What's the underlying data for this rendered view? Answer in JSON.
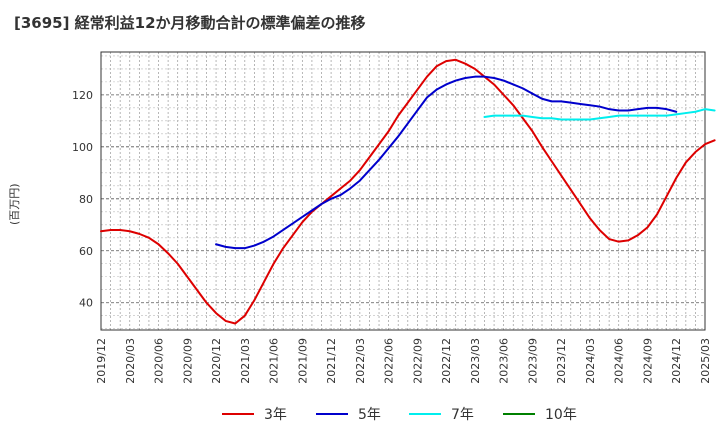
{
  "title": "[3695]  経常利益12か月移動合計の標準偏差の推移",
  "chart_data": {
    "type": "line",
    "title": "[3695]  経常利益12か月移動合計の標準偏差の推移",
    "ylabel": "(百万円)",
    "xlabel": "",
    "x_ticks": [
      "2019/12",
      "2020/03",
      "2020/06",
      "2020/09",
      "2020/12",
      "2021/03",
      "2021/06",
      "2021/09",
      "2021/12",
      "2022/03",
      "2022/06",
      "2022/09",
      "2022/12",
      "2023/03",
      "2023/06",
      "2023/09",
      "2023/12",
      "2024/03",
      "2024/06",
      "2024/09",
      "2024/12",
      "2025/03"
    ],
    "y_ticks": [
      40,
      60,
      80,
      100,
      120
    ],
    "ylim": [
      29.5,
      136.5
    ],
    "grid": true,
    "legend_position": "bottom",
    "series": [
      {
        "name": "3年",
        "color": "#dd0000",
        "start_index": 0,
        "values": [
          67.5,
          68,
          68,
          67.5,
          66.5,
          65,
          62.5,
          59,
          55,
          50,
          45,
          40,
          36,
          33,
          32,
          35,
          41,
          48,
          55,
          61,
          66,
          71,
          75,
          78,
          81,
          84,
          87,
          91,
          96,
          101,
          106,
          112,
          117,
          122,
          127,
          131,
          133,
          133.5,
          132,
          130,
          127,
          124,
          120,
          116,
          111,
          106,
          100,
          94.5,
          89,
          83.5,
          78,
          72.5,
          68,
          64.5,
          63.5,
          64,
          66,
          69,
          74,
          81,
          88,
          94,
          98,
          101,
          102.5
        ]
      },
      {
        "name": "5年",
        "color": "#0000cc",
        "start_index": 12,
        "values": [
          62.5,
          61.5,
          61,
          61,
          62,
          63.5,
          65.5,
          68,
          70.5,
          73,
          75.5,
          78,
          80,
          81.5,
          84,
          87,
          91,
          95,
          99.5,
          104,
          109,
          114,
          119,
          122,
          124,
          125.5,
          126.5,
          127,
          127,
          126.5,
          125.5,
          124,
          122.5,
          120.5,
          118.5,
          117.5,
          117.5,
          117,
          116.5,
          116,
          115.5,
          114.5,
          114,
          114,
          114.5,
          115,
          115,
          114.5,
          113.5
        ]
      },
      {
        "name": "7年",
        "color": "#00eeee",
        "start_index": 40,
        "values": [
          111.5,
          112,
          112,
          112,
          112,
          111.5,
          111,
          111,
          110.5,
          110.5,
          110.5,
          110.5,
          111,
          111.5,
          112,
          112,
          112,
          112,
          112,
          112,
          112.5,
          113,
          113.5,
          114.5,
          114
        ]
      },
      {
        "name": "10年",
        "color": "#008000",
        "start_index": 0,
        "values": []
      }
    ]
  }
}
